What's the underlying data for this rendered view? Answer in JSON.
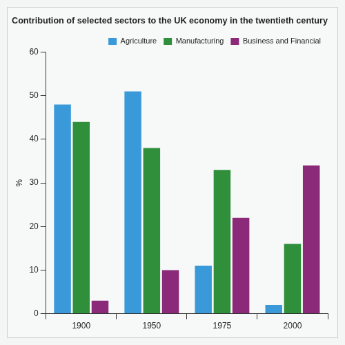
{
  "chart_data": {
    "type": "bar",
    "title": "Contribution of selected sectors to the UK economy in the twentieth century",
    "categories": [
      "1900",
      "1950",
      "1975",
      "2000"
    ],
    "series": [
      {
        "name": "Agriculture",
        "color": "#3a9ad9",
        "values": [
          48,
          51,
          11,
          2
        ]
      },
      {
        "name": "Manufacturing",
        "color": "#2f8f3a",
        "values": [
          44,
          38,
          33,
          16
        ]
      },
      {
        "name": "Business and Financial",
        "color": "#8a2a78",
        "values": [
          3,
          10,
          22,
          34
        ]
      }
    ],
    "y_label": "%",
    "ylim": [
      0,
      60
    ],
    "yticks": [
      0,
      10,
      20,
      30,
      40,
      50,
      60
    ],
    "grid": false,
    "legend": "upper right"
  }
}
